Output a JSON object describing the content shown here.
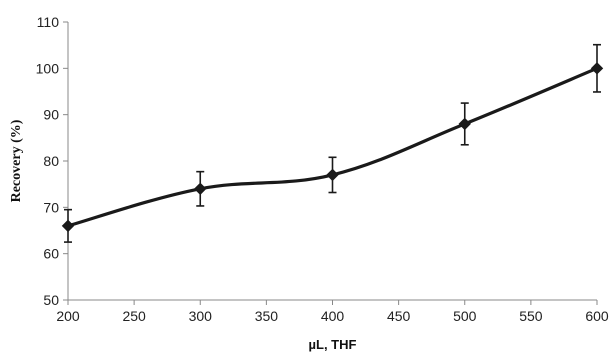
{
  "chart_data": {
    "type": "line",
    "title": "",
    "xlabel": "µL, THF",
    "ylabel": "Recovery (%)",
    "xlim": [
      200,
      600
    ],
    "ylim": [
      50,
      110
    ],
    "x_ticks": [
      200,
      250,
      300,
      350,
      400,
      450,
      500,
      550,
      600
    ],
    "y_ticks": [
      50,
      60,
      70,
      80,
      90,
      100,
      110
    ],
    "grid": false,
    "legend": "none",
    "series": [
      {
        "x": [
          200,
          300,
          400,
          500,
          600
        ],
        "values": [
          66,
          74,
          77,
          88,
          100
        ],
        "error": [
          3.5,
          3.7,
          3.8,
          4.5,
          5.1
        ],
        "marker": "diamond",
        "color": "#1a1a1a"
      }
    ]
  }
}
